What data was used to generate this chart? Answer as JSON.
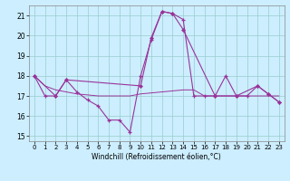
{
  "background_color": "#cceeff",
  "grid_color": "#99cccc",
  "line_color": "#993399",
  "xlim": [
    -0.5,
    23.5
  ],
  "ylim": [
    14.75,
    21.5
  ],
  "xticks": [
    0,
    1,
    2,
    3,
    4,
    5,
    6,
    7,
    8,
    9,
    10,
    11,
    12,
    13,
    14,
    15,
    16,
    17,
    18,
    19,
    20,
    21,
    22,
    23
  ],
  "yticks": [
    15,
    16,
    17,
    18,
    19,
    20,
    21
  ],
  "xlabel": "Windchill (Refroidissement éolien,°C)",
  "series1_x": [
    0,
    1,
    2,
    3,
    4,
    5,
    6,
    7,
    8,
    9,
    10,
    11,
    12,
    13,
    14,
    15,
    16,
    17,
    18,
    19,
    20,
    21,
    22,
    23
  ],
  "series1_y": [
    18.0,
    17.0,
    17.0,
    17.8,
    17.2,
    16.8,
    16.5,
    15.8,
    15.8,
    15.2,
    18.0,
    19.8,
    21.2,
    21.1,
    20.8,
    17.0,
    17.0,
    17.0,
    18.0,
    17.0,
    17.0,
    17.5,
    17.1,
    16.7
  ],
  "series2_x": [
    0,
    1,
    2,
    3,
    4,
    5,
    6,
    7,
    8,
    9,
    10,
    11,
    12,
    13,
    14,
    15,
    16,
    17,
    18,
    19,
    20,
    21,
    22,
    23
  ],
  "series2_y": [
    18.0,
    17.5,
    17.3,
    17.2,
    17.1,
    17.05,
    17.0,
    17.0,
    17.0,
    17.0,
    17.1,
    17.15,
    17.2,
    17.25,
    17.3,
    17.3,
    17.0,
    17.0,
    17.0,
    17.0,
    17.0,
    17.0,
    17.0,
    17.0
  ],
  "series3_x": [
    0,
    2,
    3,
    10,
    11,
    12,
    13,
    14,
    17,
    19,
    21,
    22,
    23
  ],
  "series3_y": [
    18.0,
    17.0,
    17.8,
    17.5,
    19.9,
    21.2,
    21.1,
    20.3,
    17.0,
    17.0,
    17.5,
    17.1,
    16.7
  ]
}
